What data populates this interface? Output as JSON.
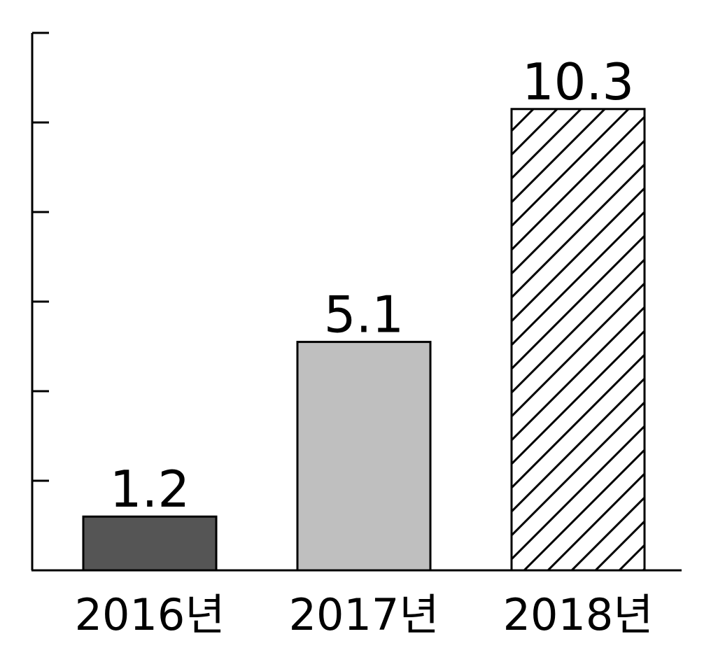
{
  "chart_data": {
    "type": "bar",
    "categories": [
      "2016년",
      "2017년",
      "2018년"
    ],
    "values": [
      1.2,
      5.1,
      10.3
    ],
    "data_labels": [
      "1.2",
      "5.1",
      "10.3"
    ],
    "ylim": [
      0,
      12
    ],
    "y_tick_step": 2,
    "y_tick_labels_shown": false,
    "grid": false,
    "legend": "none",
    "bar_styles": [
      {
        "fill": "#555555",
        "pattern": "solid"
      },
      {
        "fill": "#bfbfbf",
        "pattern": "solid"
      },
      {
        "fill": "#ffffff",
        "pattern": "diagonal-hatch"
      }
    ],
    "colors": {
      "axis": "#000000",
      "bar_outline": "#000000",
      "hatch": "#000000"
    }
  }
}
